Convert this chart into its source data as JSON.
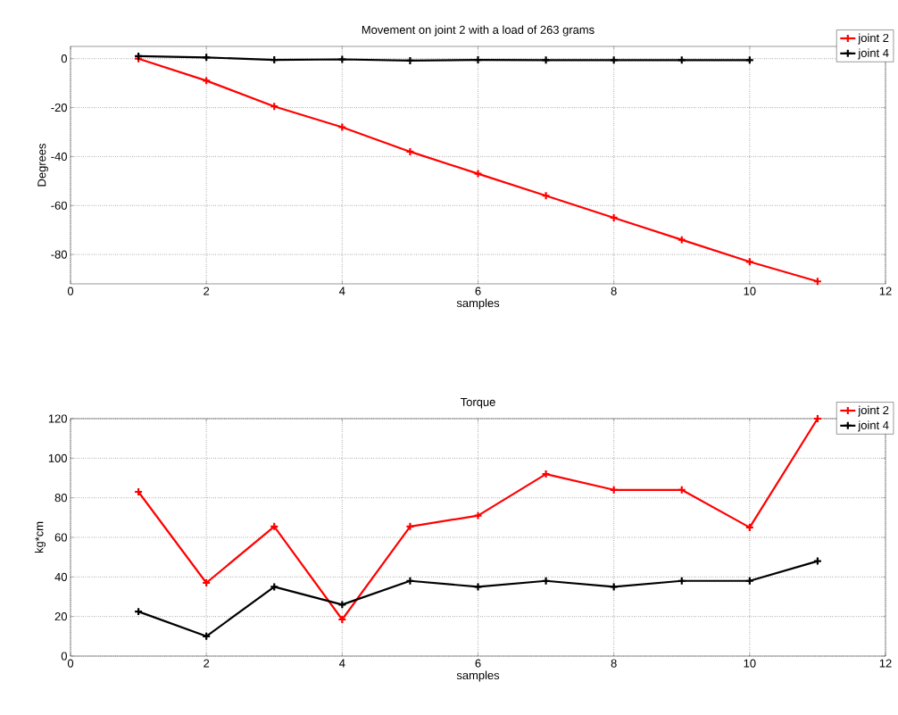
{
  "chart_data": [
    {
      "type": "line",
      "title": "Movement on joint 2 with a load of 263 grams",
      "xlabel": "samples",
      "ylabel": "Degrees",
      "x": [
        1,
        2,
        3,
        4,
        5,
        6,
        7,
        8,
        9,
        10,
        11
      ],
      "series": [
        {
          "name": "joint 2",
          "color": "#ff0000",
          "values": [
            0,
            -9,
            -19.5,
            -28,
            -38,
            -47,
            -56,
            -65,
            -74,
            -83,
            -91
          ]
        },
        {
          "name": "joint 4",
          "color": "#000000",
          "values": [
            1,
            0.5,
            -0.5,
            -0.3,
            -0.8,
            -0.5,
            -0.6,
            -0.6,
            -0.6,
            -0.6,
            null
          ]
        }
      ],
      "xlim": [
        0,
        12
      ],
      "ylim": [
        -92,
        5
      ],
      "xticks": [
        0,
        2,
        4,
        6,
        8,
        10,
        12
      ],
      "yticks": [
        -80,
        -60,
        -40,
        -20,
        0
      ],
      "grid": true,
      "legend": "top right",
      "marker": "cross",
      "line_style": "solid"
    },
    {
      "type": "line",
      "title": "Torque",
      "xlabel": "samples",
      "ylabel": "kg*cm",
      "x": [
        1,
        2,
        3,
        4,
        5,
        6,
        7,
        8,
        9,
        10,
        11
      ],
      "series": [
        {
          "name": "joint 2",
          "color": "#ff0000",
          "values": [
            83,
            37,
            65.5,
            18.5,
            65.5,
            71,
            92,
            84,
            84,
            65,
            120
          ]
        },
        {
          "name": "joint 4",
          "color": "#000000",
          "values": [
            22.5,
            10,
            35,
            26,
            38,
            35,
            38,
            35,
            38,
            38,
            48
          ]
        }
      ],
      "xlim": [
        0,
        12
      ],
      "ylim": [
        0,
        120
      ],
      "xticks": [
        0,
        2,
        4,
        6,
        8,
        10,
        12
      ],
      "yticks": [
        0,
        20,
        40,
        60,
        80,
        100,
        120
      ],
      "grid": true,
      "legend": "top right",
      "marker": "cross",
      "line_style": "solid"
    }
  ]
}
